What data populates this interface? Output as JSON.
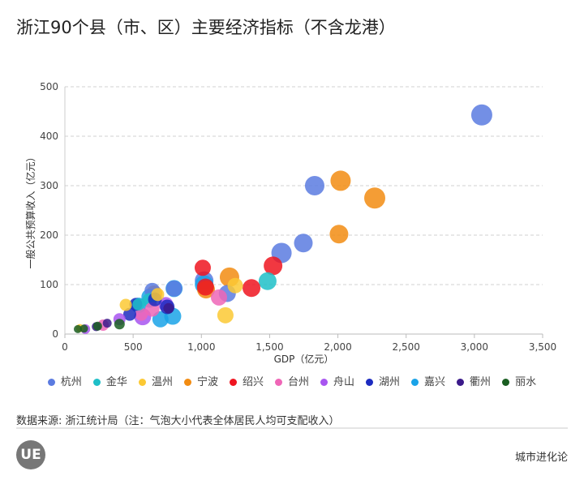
{
  "title": "浙江90个县（市、区）主要经济指标（不含龙港）",
  "source": "数据来源: 浙江统计局（注：气泡大小代表全体居民人均可支配收入）",
  "brand": "城市进化论",
  "logo_text": "UE",
  "chart_data": {
    "type": "scatter",
    "xlabel": "GDP（亿元）",
    "ylabel": "一般公共预算收入（亿元）",
    "xlim": [
      0,
      3500
    ],
    "ylim": [
      0,
      500
    ],
    "xticks": [
      0,
      500,
      1000,
      1500,
      2000,
      2500,
      3000,
      3500
    ],
    "xtick_labels": [
      "0",
      "500",
      "1,000",
      "1,500",
      "2,000",
      "2,500",
      "3,000",
      "3,500"
    ],
    "yticks": [
      0,
      100,
      200,
      300,
      400,
      500
    ],
    "ytick_labels": [
      "0",
      "100",
      "200",
      "300",
      "400",
      "500"
    ],
    "grid": "horizontal dashed",
    "legend_position": "bottom",
    "size_meaning": "全体居民人均可支配收入",
    "series": [
      {
        "name": "杭州",
        "color": "#5b7be0",
        "points": [
          [
            3054,
            443,
            72000
          ],
          [
            1830,
            300,
            68000
          ],
          [
            1747,
            184,
            66000
          ],
          [
            1587,
            164,
            70000
          ],
          [
            1190,
            82,
            62000
          ],
          [
            1020,
            108,
            66000
          ],
          [
            800,
            92,
            60000
          ],
          [
            640,
            88,
            58000
          ]
        ]
      },
      {
        "name": "金华",
        "color": "#1fbfc8",
        "points": [
          [
            1485,
            107,
            64000
          ],
          [
            620,
            68,
            56000
          ],
          [
            540,
            60,
            50000
          ]
        ]
      },
      {
        "name": "温州",
        "color": "#fcc934",
        "points": [
          [
            1176,
            38,
            60000
          ],
          [
            1248,
            98,
            58000
          ],
          [
            446,
            59,
            50000
          ],
          [
            110,
            12,
            40000
          ],
          [
            680,
            80,
            52000
          ]
        ]
      },
      {
        "name": "宁波",
        "color": "#f28c12",
        "points": [
          [
            2020,
            310,
            70000
          ],
          [
            2270,
            275,
            72000
          ],
          [
            2008,
            202,
            66000
          ],
          [
            1206,
            115,
            68000
          ],
          [
            1034,
            90,
            64000
          ],
          [
            654,
            82,
            60000
          ]
        ]
      },
      {
        "name": "绍兴",
        "color": "#ef1520",
        "points": [
          [
            1010,
            134,
            60000
          ],
          [
            1525,
            138,
            66000
          ],
          [
            1367,
            93,
            64000
          ],
          [
            1030,
            95,
            62000
          ]
        ]
      },
      {
        "name": "台州",
        "color": "#ef66b7",
        "points": [
          [
            1129,
            74,
            60000
          ],
          [
            640,
            50,
            56000
          ],
          [
            560,
            40,
            52000
          ],
          [
            280,
            18,
            48000
          ]
        ]
      },
      {
        "name": "舟山",
        "color": "#a855f0",
        "points": [
          [
            570,
            35,
            62000
          ],
          [
            400,
            30,
            50000
          ],
          [
            740,
            60,
            56000
          ],
          [
            150,
            10,
            44000
          ]
        ]
      },
      {
        "name": "湖州",
        "color": "#1c2bc0",
        "points": [
          [
            475,
            40,
            52000
          ],
          [
            750,
            55,
            56000
          ],
          [
            660,
            70,
            54000
          ],
          [
            520,
            60,
            52000
          ]
        ]
      },
      {
        "name": "嘉兴",
        "color": "#1aa3e8",
        "points": [
          [
            1020,
            100,
            66000
          ],
          [
            790,
            36,
            62000
          ],
          [
            700,
            30,
            60000
          ],
          [
            540,
            58,
            58000
          ],
          [
            800,
            92,
            62000
          ],
          [
            620,
            75,
            60000
          ]
        ]
      },
      {
        "name": "衢州",
        "color": "#3b1a8a",
        "points": [
          [
            230,
            15,
            42000
          ],
          [
            760,
            52,
            46000
          ],
          [
            310,
            22,
            42000
          ]
        ]
      },
      {
        "name": "丽水",
        "color": "#1a5e22",
        "points": [
          [
            95,
            10,
            40000
          ],
          [
            140,
            11,
            40000
          ],
          [
            240,
            16,
            42000
          ],
          [
            400,
            20,
            46000
          ]
        ]
      }
    ]
  }
}
